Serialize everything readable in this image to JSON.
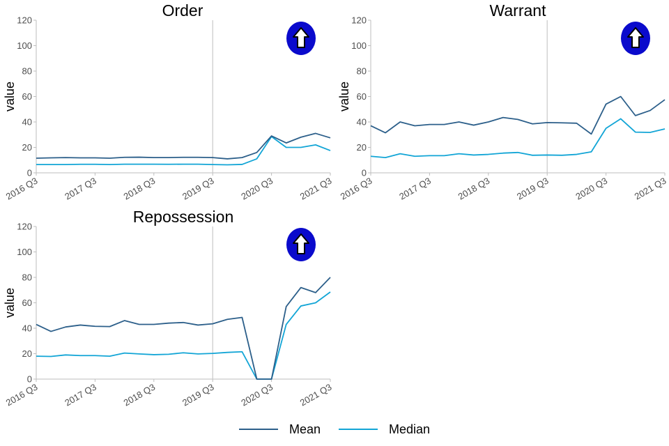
{
  "chart_data": [
    {
      "type": "line",
      "title": "Order",
      "ylabel": "value",
      "xlabel": "",
      "ylim": [
        0,
        120
      ],
      "yticks": [
        "0",
        "20",
        "40",
        "60",
        "80",
        "100",
        "120"
      ],
      "xticks": [
        "2016 Q3",
        "2017 Q3",
        "2018 Q3",
        "2019 Q3",
        "2020 Q3",
        "2021 Q3"
      ],
      "x": [
        "2016 Q3",
        "2016 Q4",
        "2017 Q1",
        "2017 Q2",
        "2017 Q3",
        "2017 Q4",
        "2018 Q1",
        "2018 Q2",
        "2018 Q3",
        "2018 Q4",
        "2019 Q1",
        "2019 Q2",
        "2019 Q3",
        "2019 Q4",
        "2020 Q1",
        "2020 Q2",
        "2020 Q3",
        "2020 Q4",
        "2021 Q1",
        "2021 Q2",
        "2021 Q3"
      ],
      "vline": "2019 Q3",
      "indicator": "up-arrow-icon",
      "series": [
        {
          "name": "Mean",
          "values": [
            11.5,
            11.8,
            12.0,
            11.8,
            11.8,
            11.5,
            12.2,
            12.3,
            12.0,
            12.0,
            12.2,
            12.2,
            12.0,
            11.0,
            12.0,
            16.0,
            29.0,
            23.5,
            28.0,
            31.0,
            27.5
          ]
        },
        {
          "name": "Median",
          "values": [
            6.5,
            6.5,
            6.5,
            6.7,
            6.7,
            6.5,
            6.8,
            6.8,
            6.8,
            6.7,
            6.8,
            6.8,
            6.5,
            6.3,
            6.6,
            11.0,
            28.5,
            20.0,
            20.0,
            22.0,
            17.5
          ]
        }
      ]
    },
    {
      "type": "line",
      "title": "Warrant",
      "ylabel": "value",
      "xlabel": "",
      "ylim": [
        0,
        120
      ],
      "yticks": [
        "0",
        "20",
        "40",
        "60",
        "80",
        "100",
        "120"
      ],
      "xticks": [
        "2016 Q3",
        "2017 Q3",
        "2018 Q3",
        "2019 Q3",
        "2020 Q3",
        "2021 Q3"
      ],
      "x": [
        "2016 Q3",
        "2016 Q4",
        "2017 Q1",
        "2017 Q2",
        "2017 Q3",
        "2017 Q4",
        "2018 Q1",
        "2018 Q2",
        "2018 Q3",
        "2018 Q4",
        "2019 Q1",
        "2019 Q2",
        "2019 Q3",
        "2019 Q4",
        "2020 Q1",
        "2020 Q2",
        "2020 Q3",
        "2020 Q4",
        "2021 Q1",
        "2021 Q2",
        "2021 Q3"
      ],
      "vline": "2019 Q3",
      "indicator": "up-arrow-icon",
      "series": [
        {
          "name": "Mean",
          "values": [
            37.0,
            31.5,
            40.0,
            37.0,
            38.0,
            38.0,
            40.0,
            37.5,
            40.0,
            43.5,
            42.0,
            38.5,
            39.5,
            39.3,
            39.0,
            30.5,
            54.0,
            60.0,
            45.0,
            49.0,
            57.5
          ]
        },
        {
          "name": "Median",
          "values": [
            13.0,
            12.0,
            15.0,
            13.0,
            13.5,
            13.5,
            15.0,
            14.0,
            14.5,
            15.5,
            16.0,
            13.8,
            14.0,
            13.8,
            14.5,
            16.5,
            35.0,
            42.5,
            32.0,
            31.8,
            34.5
          ]
        }
      ]
    },
    {
      "type": "line",
      "title": "Repossession",
      "ylabel": "value",
      "xlabel": "",
      "ylim": [
        0,
        120
      ],
      "yticks": [
        "0",
        "20",
        "40",
        "60",
        "80",
        "100",
        "120"
      ],
      "xticks": [
        "2016 Q3",
        "2017 Q3",
        "2018 Q3",
        "2019 Q3",
        "2020 Q3",
        "2021 Q3"
      ],
      "x": [
        "2016 Q3",
        "2016 Q4",
        "2017 Q1",
        "2017 Q2",
        "2017 Q3",
        "2017 Q4",
        "2018 Q1",
        "2018 Q2",
        "2018 Q3",
        "2018 Q4",
        "2019 Q1",
        "2019 Q2",
        "2019 Q3",
        "2019 Q4",
        "2020 Q1",
        "2020 Q2",
        "2020 Q3",
        "2020 Q4",
        "2021 Q1",
        "2021 Q2",
        "2021 Q3"
      ],
      "vline": "2019 Q3",
      "indicator": "up-arrow-icon",
      "series": [
        {
          "name": "Mean",
          "values": [
            43.0,
            37.5,
            41.0,
            42.5,
            41.5,
            41.3,
            46.0,
            43.0,
            43.0,
            44.0,
            44.5,
            42.5,
            43.5,
            47.0,
            48.5,
            0,
            0,
            57.0,
            72.0,
            68.0,
            80.0
          ]
        },
        {
          "name": "Median",
          "values": [
            18.0,
            17.8,
            19.0,
            18.5,
            18.5,
            18.0,
            20.5,
            19.8,
            19.2,
            19.5,
            20.7,
            19.8,
            20.2,
            21.0,
            21.5,
            0,
            0,
            43.0,
            57.5,
            60.0,
            68.5
          ]
        }
      ]
    }
  ],
  "legend": {
    "items": [
      {
        "label": "Mean",
        "color": "#2c5f8a"
      },
      {
        "label": "Median",
        "color": "#12a5d6"
      }
    ]
  },
  "colors": {
    "mean": "#2c5f8a",
    "median": "#12a5d6",
    "vline": "#c8c8c8",
    "indicator_fill": "#0a0acc"
  }
}
